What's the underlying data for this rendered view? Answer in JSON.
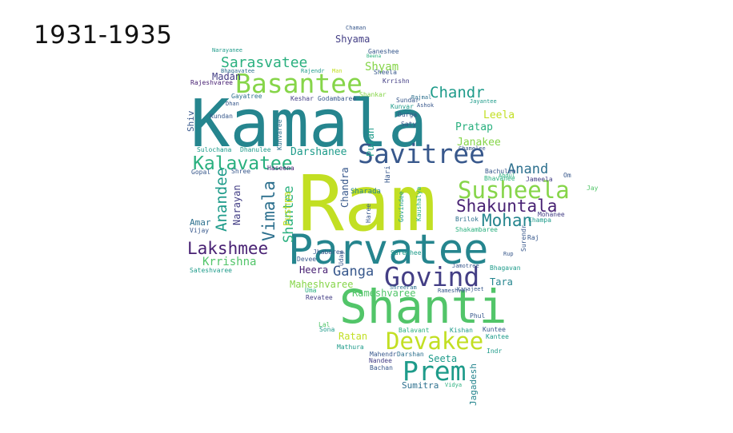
{
  "title": "1931-1935",
  "palette": {
    "yellow": "#c2df23",
    "lime": "#86d549",
    "green": "#52c569",
    "teal_green": "#2ab07f",
    "teal": "#1e9b8a",
    "blue_teal": "#25858e",
    "slate": "#2d708e",
    "indigo": "#38588c",
    "violet": "#433e85",
    "dark": "#482173"
  },
  "words": [
    "Ram",
    "Kamala",
    "Parvatee",
    "Shanti",
    "Basantee",
    "Savitree",
    "Susheela",
    "Govind",
    "Devakee",
    "Prem",
    "Kalavatee",
    "Shakuntala",
    "Mohan",
    "Lakshmee",
    "Sarasvatee",
    "Anand",
    "Chandr",
    "Vimala",
    "Anandee",
    "Shantee",
    "Shyam",
    "Krrishna",
    "Darshanee",
    "Pushpa",
    "Ganga",
    "Shyama",
    "Leela",
    "Pratap",
    "Janakee",
    "Chandra",
    "Puran",
    "Narayan",
    "Maheshvaree",
    "Rameshvaree",
    "Ratan",
    "Seeta",
    "Sumitra",
    "Jagadesh",
    "Heera",
    "Tara",
    "Madan",
    "Rajeshvaree",
    "Shiv",
    "Sulochana",
    "Gopal",
    "Amar",
    "Vijay",
    "Sateshvaree",
    "Jhabaree",
    "Sureshee",
    "Uday",
    "Devee",
    "Jay",
    "Om",
    "Jameela",
    "Mohanee",
    "Bachulee",
    "Bhavanee",
    "Chamelee",
    "Brilok",
    "Shakambaree",
    "Lal",
    "Sona",
    "Mathura",
    "Mahendr",
    "Darshan",
    "Nandee",
    "Bachan",
    "Vidya",
    "Phul",
    "Kuntee",
    "Kantee",
    "Indr",
    "Kishan",
    "Balavant",
    "Gayatree",
    "Keshar",
    "Godambaree",
    "Kundan",
    "Dhan",
    "Narayanee",
    "Bhagavatee",
    "Rajendr",
    "Man",
    "Ganeshee",
    "Sheela",
    "Krrishn",
    "Kunvar",
    "Durga",
    "Saty",
    "Sundar",
    "Chaman",
    "Beena",
    "Shankar",
    "Dhanulee",
    "Kunvaree",
    "Shree",
    "Haseena",
    "Hari",
    "Govindee",
    "Kaushalya",
    "Sharada",
    "Haree",
    "Revatee",
    "Raj",
    "Champa",
    "Surendr",
    "Bhagavan",
    "Rup",
    "Jamotree",
    "Shreeram",
    "Kanajeet",
    "Rameshvar",
    "Jayantee",
    "Abdul",
    "Rajmal",
    "Uma",
    "Ashok"
  ]
}
